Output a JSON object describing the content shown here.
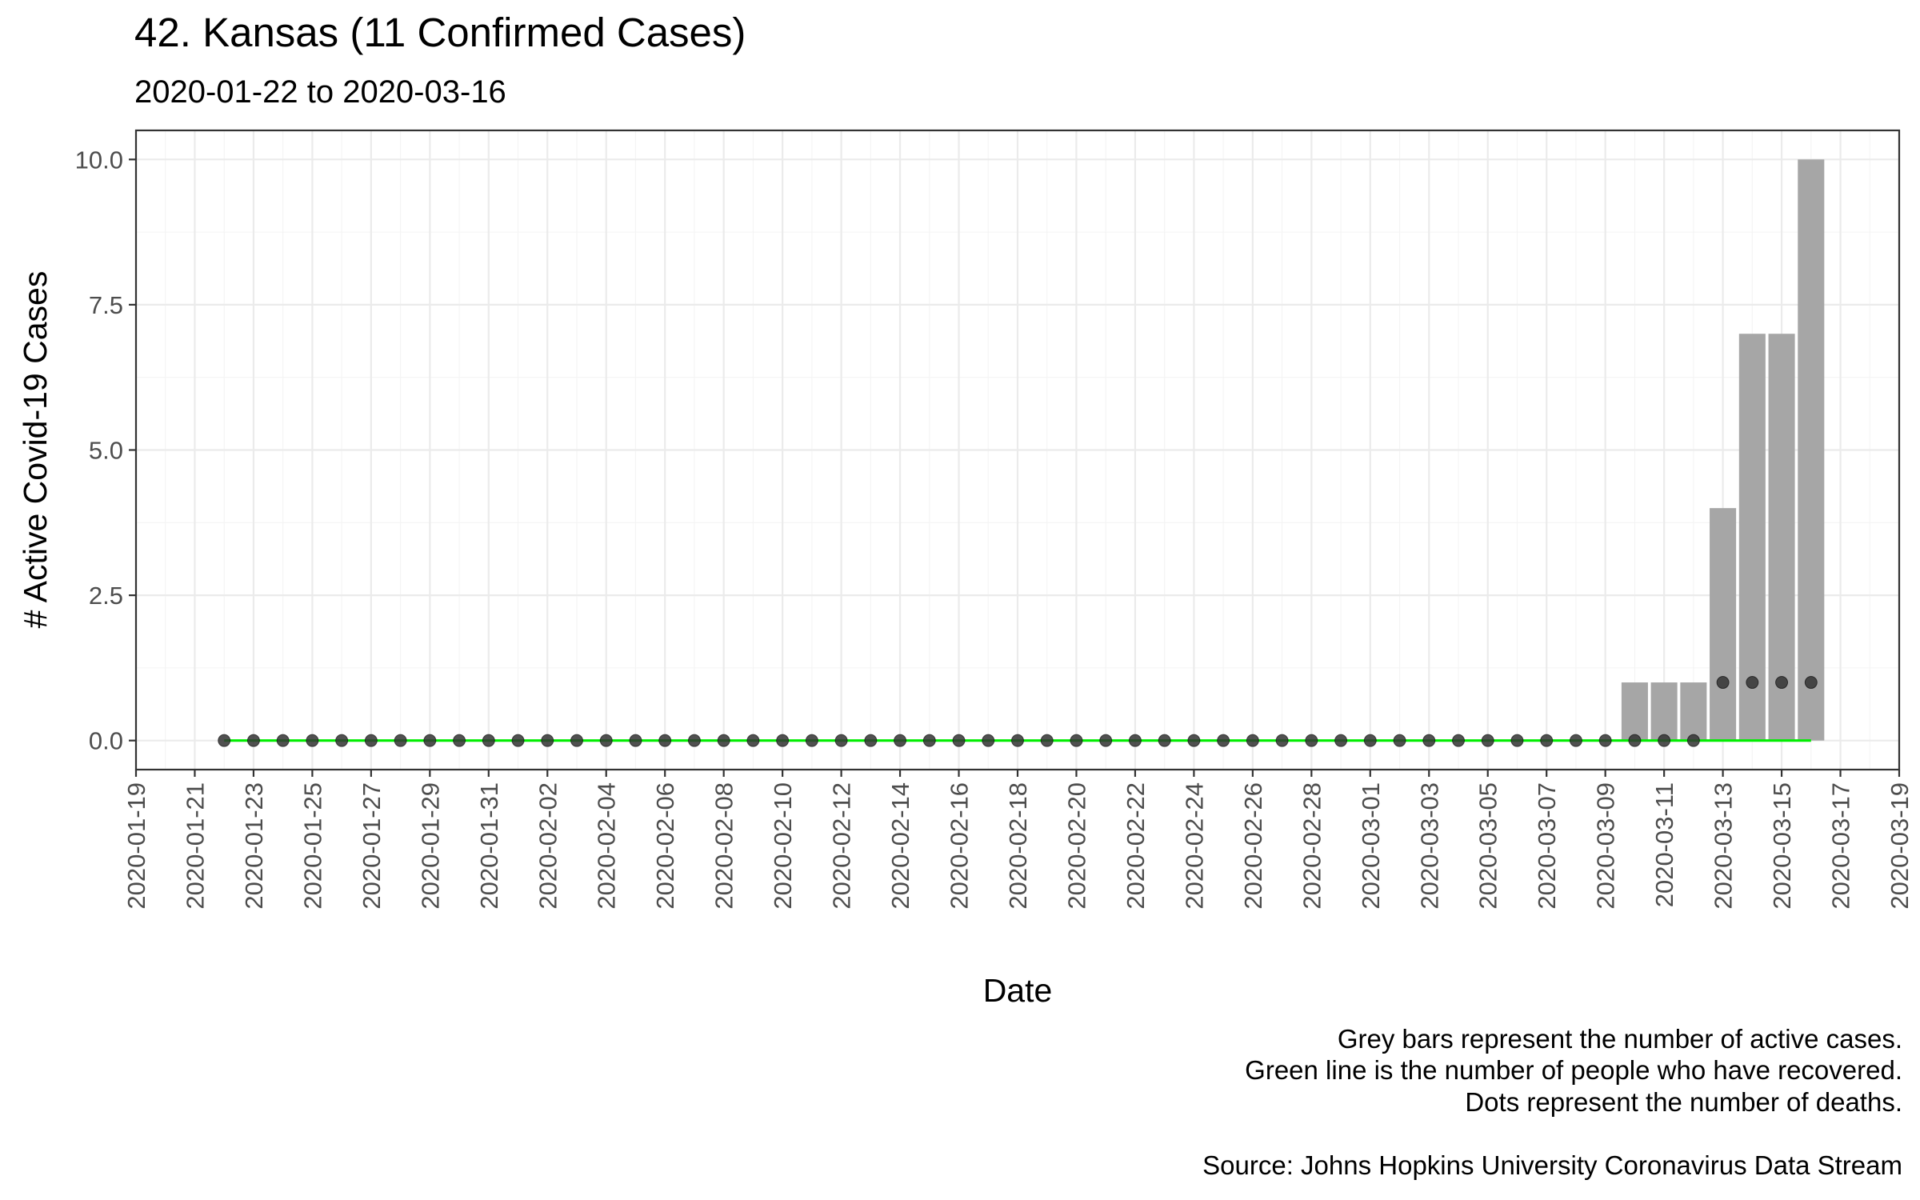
{
  "chart_data": {
    "type": "bar",
    "title": "42. Kansas (11 Confirmed Cases)",
    "subtitle": "2020-01-22 to 2020-03-16",
    "xlabel": "Date",
    "ylabel": "# Active Covid-19 Cases",
    "xlim": [
      "2020-01-19",
      "2020-03-19"
    ],
    "ylim": [
      -0.5,
      10.5
    ],
    "y_ticks": [
      "0.0",
      "2.5",
      "5.0",
      "7.5",
      "10.0"
    ],
    "x_ticks": [
      "2020-01-19",
      "2020-01-21",
      "2020-01-23",
      "2020-01-25",
      "2020-01-27",
      "2020-01-29",
      "2020-01-31",
      "2020-02-02",
      "2020-02-04",
      "2020-02-06",
      "2020-02-08",
      "2020-02-10",
      "2020-02-12",
      "2020-02-14",
      "2020-02-16",
      "2020-02-18",
      "2020-02-20",
      "2020-02-22",
      "2020-02-24",
      "2020-02-26",
      "2020-02-28",
      "2020-03-01",
      "2020-03-03",
      "2020-03-05",
      "2020-03-07",
      "2020-03-09",
      "2020-03-11",
      "2020-03-13",
      "2020-03-15",
      "2020-03-17",
      "2020-03-19"
    ],
    "grid": true,
    "legend": "none",
    "start_date": "2020-01-22",
    "series": [
      {
        "name": "Active cases",
        "mark": "bar",
        "color": "#a6a6a6",
        "values": [
          0,
          0,
          0,
          0,
          0,
          0,
          0,
          0,
          0,
          0,
          0,
          0,
          0,
          0,
          0,
          0,
          0,
          0,
          0,
          0,
          0,
          0,
          0,
          0,
          0,
          0,
          0,
          0,
          0,
          0,
          0,
          0,
          0,
          0,
          0,
          0,
          0,
          0,
          0,
          0,
          0,
          0,
          0,
          0,
          0,
          0,
          0,
          0,
          1,
          1,
          1,
          4,
          7,
          7,
          10
        ]
      },
      {
        "name": "Recovered",
        "mark": "line",
        "color": "#00ee00",
        "values": [
          0,
          0,
          0,
          0,
          0,
          0,
          0,
          0,
          0,
          0,
          0,
          0,
          0,
          0,
          0,
          0,
          0,
          0,
          0,
          0,
          0,
          0,
          0,
          0,
          0,
          0,
          0,
          0,
          0,
          0,
          0,
          0,
          0,
          0,
          0,
          0,
          0,
          0,
          0,
          0,
          0,
          0,
          0,
          0,
          0,
          0,
          0,
          0,
          0,
          0,
          0,
          0,
          0,
          0,
          0
        ]
      },
      {
        "name": "Deaths",
        "mark": "point",
        "color": "#333333",
        "values": [
          0,
          0,
          0,
          0,
          0,
          0,
          0,
          0,
          0,
          0,
          0,
          0,
          0,
          0,
          0,
          0,
          0,
          0,
          0,
          0,
          0,
          0,
          0,
          0,
          0,
          0,
          0,
          0,
          0,
          0,
          0,
          0,
          0,
          0,
          0,
          0,
          0,
          0,
          0,
          0,
          0,
          0,
          0,
          0,
          0,
          0,
          0,
          0,
          0,
          0,
          0,
          1,
          1,
          1,
          1
        ]
      }
    ],
    "caption_lines": [
      "Grey bars represent the number of active cases.",
      "Green line is the number of people who have recovered.",
      "Dots represent the number of deaths."
    ],
    "source": "Source: Johns Hopkins University Coronavirus Data Stream"
  }
}
